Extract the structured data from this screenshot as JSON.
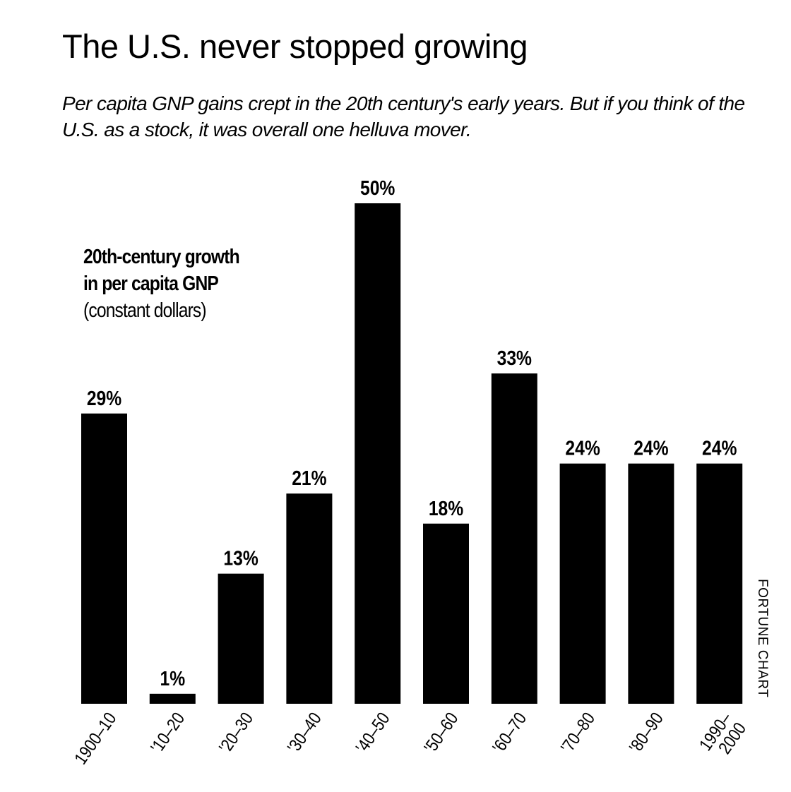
{
  "title": "The U.S. never stopped growing",
  "subtitle": "Per capita GNP gains crept in the 20th century's early years. But if you think of the U.S. as a stock, it was overall one helluva mover.",
  "annotation": {
    "line1": "20th-century growth",
    "line2": "in per capita GNP",
    "line3": "(constant dollars)"
  },
  "credit": "FORTUNE CHART",
  "chart_data": {
    "type": "bar",
    "title": "20th-century growth in per capita GNP (constant dollars)",
    "categories": [
      "1900–10",
      "'10–20",
      "'20–30",
      "'30–40",
      "'40–50",
      "'50–60",
      "'60–70",
      "'70–80",
      "'80–90",
      "1990–2000"
    ],
    "values": [
      29,
      1,
      13,
      21,
      50,
      18,
      33,
      24,
      24,
      24
    ],
    "data_labels": [
      "29%",
      "1%",
      "13%",
      "21%",
      "50%",
      "18%",
      "33%",
      "24%",
      "24%",
      "24%"
    ],
    "unit": "%",
    "ylim": [
      0,
      50
    ],
    "grid": false,
    "bar_color": "#000000"
  }
}
